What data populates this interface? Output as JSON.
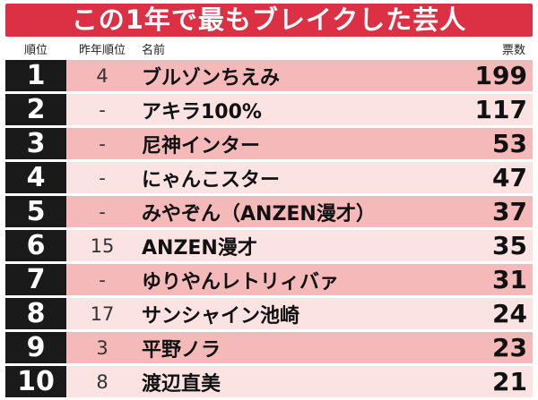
{
  "banner": {
    "title": "この1年で最もブレイクした芸人"
  },
  "header": {
    "rank": "順位",
    "prev_rank": "昨年順位",
    "name": "名前",
    "votes": "票数"
  },
  "colors": {
    "banner": "#dc3045",
    "rank_cell": "#1a1a1a",
    "row_pink": "#f5b9b9",
    "row_light": "#fbe3e3"
  },
  "rows": [
    {
      "rank": "1",
      "prev": "4",
      "name": "ブルゾンちえみ",
      "votes": "199"
    },
    {
      "rank": "2",
      "prev": "-",
      "name": "アキラ100%",
      "votes": "117"
    },
    {
      "rank": "3",
      "prev": "-",
      "name": "尼神インター",
      "votes": "53"
    },
    {
      "rank": "4",
      "prev": "-",
      "name": "にゃんこスター",
      "votes": "47"
    },
    {
      "rank": "5",
      "prev": "-",
      "name": "みやぞん（ANZEN漫才）",
      "votes": "37"
    },
    {
      "rank": "6",
      "prev": "15",
      "name": "ANZEN漫才",
      "votes": "35"
    },
    {
      "rank": "7",
      "prev": "-",
      "name": "ゆりやんレトリィバァ",
      "votes": "31"
    },
    {
      "rank": "8",
      "prev": "17",
      "name": "サンシャイン池崎",
      "votes": "24"
    },
    {
      "rank": "9",
      "prev": "3",
      "name": "平野ノラ",
      "votes": "23"
    },
    {
      "rank": "10",
      "prev": "8",
      "name": "渡辺直美",
      "votes": "21"
    }
  ]
}
